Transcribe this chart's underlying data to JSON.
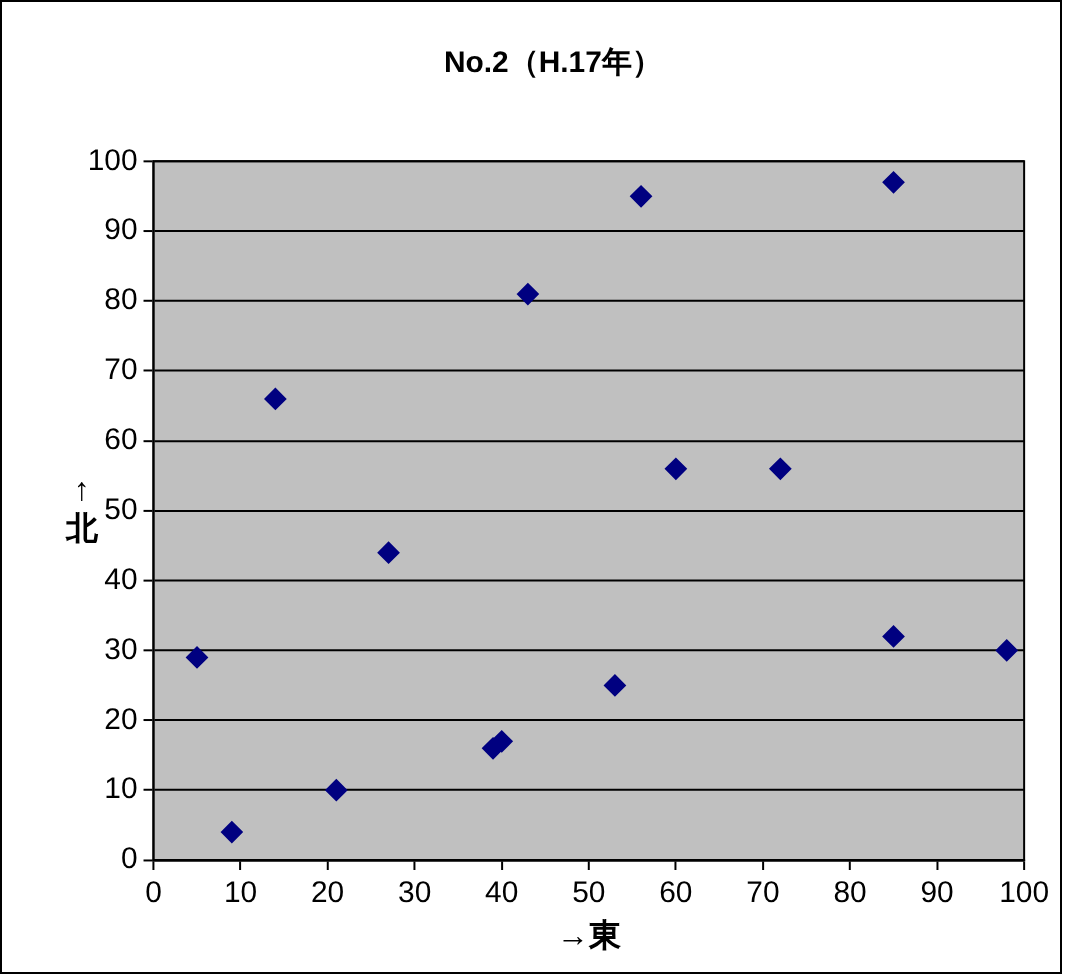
{
  "chart_data": {
    "type": "scatter",
    "title": "No.2（H.17年）",
    "xlabel": "→東",
    "ylabel": "↑北",
    "x": [
      5,
      9,
      14,
      21,
      27,
      39,
      40,
      43,
      53,
      56,
      60,
      72,
      85,
      85,
      98
    ],
    "series": [
      {
        "color": "#000080",
        "values": [
          29,
          4,
          66,
          10,
          44,
          16,
          17,
          81,
          25,
          95,
          56,
          56,
          97,
          32,
          30
        ]
      }
    ],
    "xlim": [
      0,
      100
    ],
    "xticks": [
      0,
      10,
      20,
      30,
      40,
      50,
      60,
      70,
      80,
      90,
      100
    ],
    "ylim": [
      0,
      100
    ],
    "yticks": [
      0,
      10,
      20,
      30,
      40,
      50,
      60,
      70,
      80,
      90,
      100
    ],
    "grid": "y",
    "marker": "diamond",
    "legend": false
  }
}
